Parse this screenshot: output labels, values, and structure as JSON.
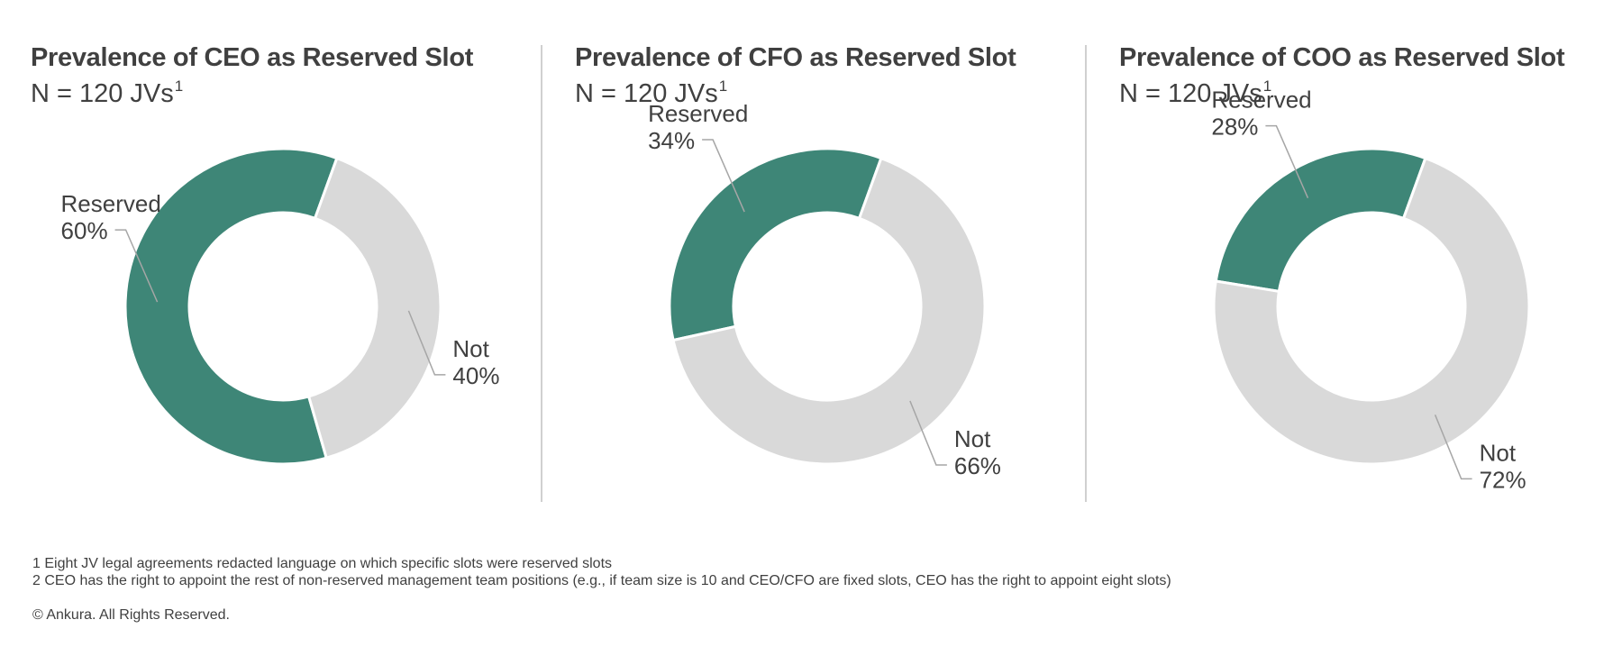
{
  "chart_data": [
    {
      "type": "pie",
      "title": "Prevalence of CEO as Reserved Slot",
      "subtitle": "N = 120 JVs",
      "subtitle_sup": "1",
      "categories": [
        "Reserved",
        "Not"
      ],
      "values": [
        60,
        40
      ],
      "value_labels": [
        "60%",
        "40%"
      ],
      "colors": [
        "#3e8677",
        "#d9d9d9"
      ]
    },
    {
      "type": "pie",
      "title": "Prevalence of CFO as Reserved Slot",
      "subtitle": "N = 120 JVs",
      "subtitle_sup": "1",
      "categories": [
        "Reserved",
        "Not"
      ],
      "values": [
        34,
        66
      ],
      "value_labels": [
        "34%",
        "66%"
      ],
      "colors": [
        "#3e8677",
        "#d9d9d9"
      ]
    },
    {
      "type": "pie",
      "title": "Prevalence of COO as Reserved Slot",
      "subtitle": "N = 120 JVs",
      "subtitle_sup": "1",
      "categories": [
        "Reserved",
        "Not"
      ],
      "values": [
        28,
        72
      ],
      "value_labels": [
        "28%",
        "72%"
      ],
      "colors": [
        "#3e8677",
        "#d9d9d9"
      ]
    }
  ],
  "footnotes": [
    "1 Eight JV legal agreements redacted language on which specific slots were reserved slots",
    "2 CEO has the right to appoint the rest of non-reserved management team positions (e.g., if team size is 10 and CEO/CFO are fixed slots, CEO has the right to appoint eight slots)"
  ],
  "copyright": "© Ankura. All Rights Reserved."
}
